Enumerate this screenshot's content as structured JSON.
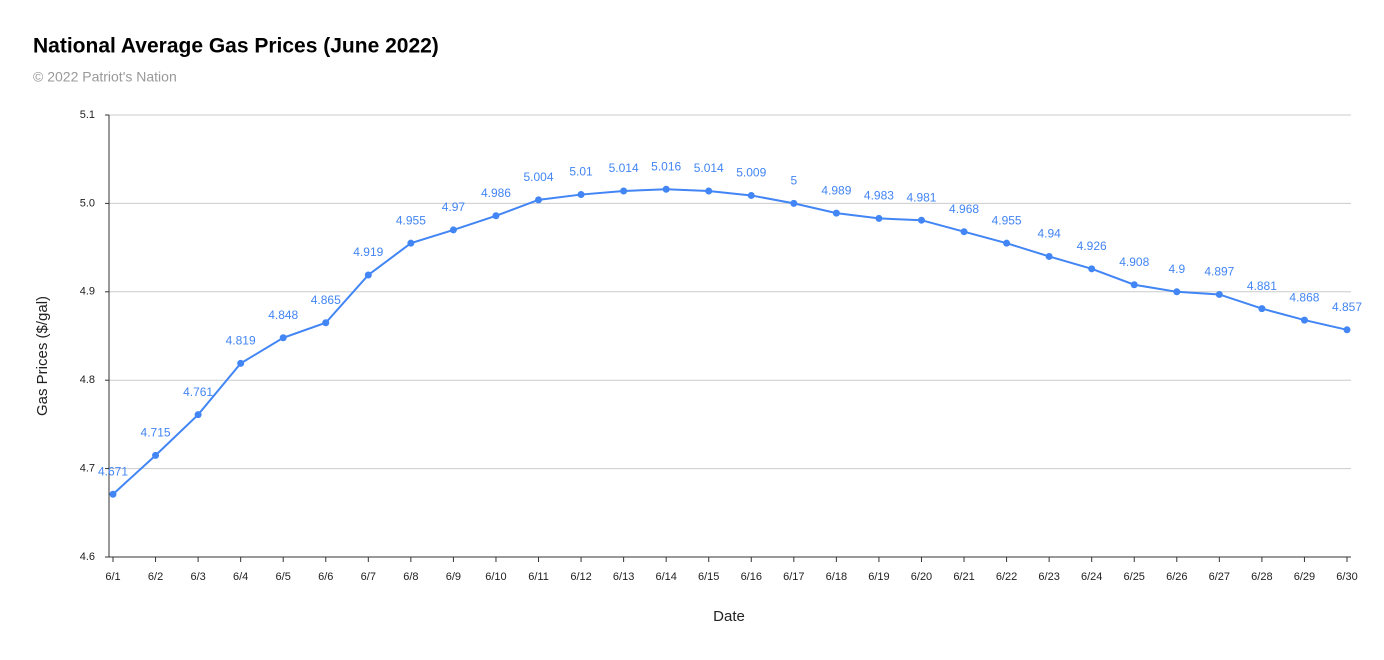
{
  "chart_data": {
    "type": "line",
    "title": "National Average Gas Prices (June 2022)",
    "subtitle": "© 2022 Patriot's Nation",
    "x_label": "Date",
    "y_label": "Gas Prices ($/gal)",
    "categories": [
      "6/1",
      "6/2",
      "6/3",
      "6/4",
      "6/5",
      "6/6",
      "6/7",
      "6/8",
      "6/9",
      "6/10",
      "6/11",
      "6/12",
      "6/13",
      "6/14",
      "6/15",
      "6/16",
      "6/17",
      "6/18",
      "6/19",
      "6/20",
      "6/21",
      "6/22",
      "6/23",
      "6/24",
      "6/25",
      "6/26",
      "6/27",
      "6/28",
      "6/29",
      "6/30"
    ],
    "series": [
      {
        "name": "Gas Prices ($/gal)",
        "color": "#4285f4",
        "values": [
          4.671,
          4.715,
          4.761,
          4.819,
          4.848,
          4.865,
          4.919,
          4.955,
          4.97,
          4.986,
          5.004,
          5.01,
          5.014,
          5.016,
          5.014,
          5.009,
          5,
          4.989,
          4.983,
          4.981,
          4.968,
          4.955,
          4.94,
          4.926,
          4.908,
          4.9,
          4.897,
          4.881,
          4.868,
          4.857
        ]
      }
    ],
    "ylim": [
      4.6,
      5.1
    ],
    "yticks": [
      4.6,
      4.7,
      4.8,
      4.9,
      {
        "value": 5,
        "label": "5.0"
      },
      5.1
    ],
    "grid": true
  }
}
